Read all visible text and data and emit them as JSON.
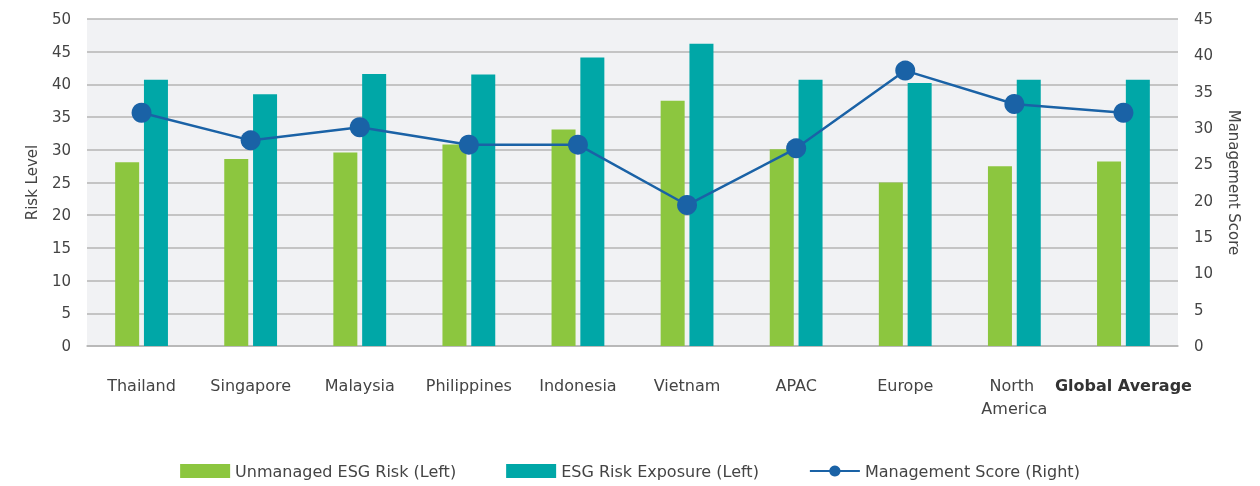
{
  "chart_data": {
    "type": "bar",
    "categories": [
      "Thailand",
      "Singapore",
      "Malaysia",
      "Philippines",
      "Indonesia",
      "Vietnam",
      "APAC",
      "Europe",
      "North America",
      "Global Average"
    ],
    "series": [
      {
        "name": "Unmanaged ESG Risk (Left)",
        "color": "#8cc63f",
        "values": [
          28.1,
          28.6,
          29.6,
          30.8,
          33.1,
          37.5,
          30.1,
          25.0,
          27.5,
          28.2
        ]
      },
      {
        "name": "ESG Risk Exposure (Left)",
        "color": "#00a7a7",
        "values": [
          40.7,
          38.5,
          41.6,
          41.5,
          44.1,
          46.2,
          40.7,
          40.2,
          40.7,
          40.7
        ]
      },
      {
        "name": "Management Score (Right)",
        "type": "line",
        "axis": "y2",
        "color": "#1a62a6",
        "values": [
          32.1,
          28.3,
          30.1,
          27.7,
          27.7,
          19.4,
          27.2,
          37.9,
          33.3,
          32.1
        ]
      }
    ],
    "ylabel": "Risk Level",
    "y2label": "Management Score",
    "ylim": [
      0,
      50
    ],
    "yticks": [
      0,
      5,
      10,
      15,
      20,
      25,
      30,
      35,
      40,
      45,
      50
    ],
    "y2lim": [
      0,
      45
    ],
    "y2ticks": [
      0,
      5,
      10,
      15,
      20,
      25,
      30,
      35,
      40,
      45
    ],
    "grid": "y",
    "legend": "bottom",
    "marker": "circle",
    "line_style": "solid"
  }
}
